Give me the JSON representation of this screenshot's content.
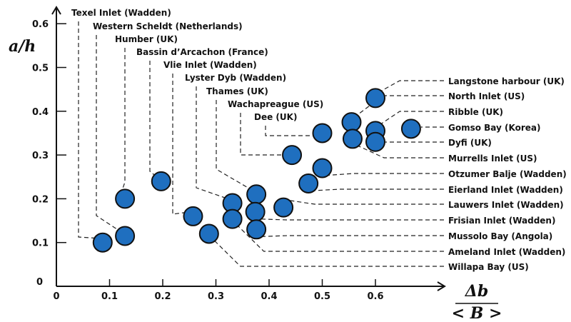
{
  "chart_data": {
    "type": "scatter",
    "title": "",
    "xlabel_numerator": "Δb",
    "xlabel_denominator": "< B >",
    "ylabel": "a/h",
    "xlim": [
      0,
      0.7
    ],
    "ylim": [
      0,
      0.6
    ],
    "xticks": [
      "0",
      "0.1",
      "0.2",
      "0.3",
      "0.4",
      "0.5",
      "0.6"
    ],
    "yticks": [
      "0",
      "0.1",
      "0.2",
      "0.3",
      "0.4",
      "0.5",
      "0.6"
    ],
    "grid": false,
    "marker_color": "#1f6fbf",
    "points": [
      {
        "label": "Texel Inlet (Wadden)",
        "x": 0.087,
        "y": 0.1
      },
      {
        "label": "Western Scheldt (Netherlands)",
        "x": 0.129,
        "y": 0.115
      },
      {
        "label": "Humber (UK)",
        "x": 0.129,
        "y": 0.2
      },
      {
        "label": "Bassin d’Arcachon (France)",
        "x": 0.197,
        "y": 0.24
      },
      {
        "label": "Vlie Inlet (Wadden)",
        "x": 0.257,
        "y": 0.16
      },
      {
        "label": "Lyster Dyb (Wadden)",
        "x": 0.331,
        "y": 0.19
      },
      {
        "label": "Thames (UK)",
        "x": 0.376,
        "y": 0.21
      },
      {
        "label": "Wachapreague (US)",
        "x": 0.443,
        "y": 0.3
      },
      {
        "label": "Dee (UK)",
        "x": 0.5,
        "y": 0.35
      },
      {
        "label": "Langstone harbour (UK)",
        "x": 0.6,
        "y": 0.43
      },
      {
        "label": "North Inlet (US)",
        "x": 0.555,
        "y": 0.375
      },
      {
        "label": "Ribble (UK)",
        "x": 0.6,
        "y": 0.355
      },
      {
        "label": "Gomso Bay (Korea)",
        "x": 0.667,
        "y": 0.36
      },
      {
        "label": "Dyfi (UK)",
        "x": 0.6,
        "y": 0.33
      },
      {
        "label": "Murrells Inlet (US)",
        "x": 0.557,
        "y": 0.337
      },
      {
        "label": "Otzumer Balje (Wadden)",
        "x": 0.5,
        "y": 0.27
      },
      {
        "label": "Eierland Inlet (Wadden)",
        "x": 0.474,
        "y": 0.235
      },
      {
        "label": "Lauwers Inlet (Wadden)",
        "x": 0.427,
        "y": 0.18
      },
      {
        "label": "Frisian Inlet (Wadden)",
        "x": 0.374,
        "y": 0.17
      },
      {
        "label": "Mussolo Bay (Angola)",
        "x": 0.376,
        "y": 0.13
      },
      {
        "label": "Ameland Inlet (Wadden)",
        "x": 0.331,
        "y": 0.154
      },
      {
        "label": "Willapa Bay (US)",
        "x": 0.287,
        "y": 0.12
      }
    ]
  }
}
